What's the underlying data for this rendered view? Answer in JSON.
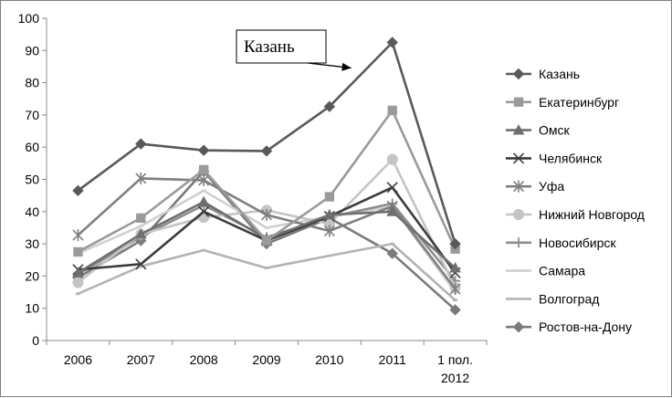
{
  "chart_data": {
    "type": "line",
    "title": "",
    "xlabel": "",
    "ylabel": "",
    "ylim": [
      0,
      100
    ],
    "yticks": [
      0,
      10,
      20,
      30,
      40,
      50,
      60,
      70,
      80,
      90,
      100
    ],
    "grid": false,
    "legend_position": "right",
    "categories": [
      "2006",
      "2007",
      "2008",
      "2009",
      "2010",
      "2011",
      "1 пол. 2012"
    ],
    "category_lines": [
      [
        "2006"
      ],
      [
        "2007"
      ],
      [
        "2008"
      ],
      [
        "2009"
      ],
      [
        "2010"
      ],
      [
        "2011"
      ],
      [
        "1 пол.",
        "2012"
      ]
    ],
    "annotation": {
      "text": "Казань",
      "target_series": "Казань",
      "target_category": "2011"
    },
    "series": [
      {
        "name": "Казань",
        "color": "#595959",
        "marker": "diamond",
        "values": [
          46.5,
          61,
          59,
          58.8,
          72.6,
          92.5,
          30
        ]
      },
      {
        "name": "Екатеринбург",
        "color": "#9a9a9a",
        "marker": "square",
        "values": [
          27.5,
          38,
          53,
          31,
          44.6,
          71.4,
          28.4
        ]
      },
      {
        "name": "Омск",
        "color": "#6f6f6f",
        "marker": "triangle",
        "values": [
          21,
          33,
          43,
          31.5,
          39,
          40,
          22.5
        ]
      },
      {
        "name": "Челябинск",
        "color": "#3c3c3c",
        "marker": "x",
        "values": [
          22,
          23.7,
          40,
          31,
          38.5,
          47.5,
          21
        ]
      },
      {
        "name": "Уфа",
        "color": "#7f7f7f",
        "marker": "star",
        "values": [
          32.7,
          50.3,
          49.7,
          39,
          34,
          41.7,
          16
        ]
      },
      {
        "name": "Нижний Новгород",
        "color": "#c4c4c4",
        "marker": "circle",
        "values": [
          18,
          33,
          38.2,
          40.4,
          36.2,
          56.2,
          16.4
        ]
      },
      {
        "name": "Новосибирск",
        "color": "#8c8c8c",
        "marker": "plus",
        "values": [
          20.5,
          32.2,
          42,
          32,
          38.3,
          42.5,
          18.5
        ]
      },
      {
        "name": "Самара",
        "color": "#d0d0d0",
        "marker": "none",
        "values": [
          27,
          35.5,
          46.5,
          35,
          38.5,
          41.5,
          15
        ]
      },
      {
        "name": "Волгоград",
        "color": "#b3b3b3",
        "marker": "none",
        "values": [
          14.5,
          23,
          28,
          22.5,
          26.3,
          30,
          12.5
        ]
      },
      {
        "name": "Ростов-на-Дону",
        "color": "#7a7a7a",
        "marker": "diamond",
        "values": [
          19.5,
          31,
          52.5,
          30,
          38,
          27,
          9.5
        ]
      }
    ]
  }
}
